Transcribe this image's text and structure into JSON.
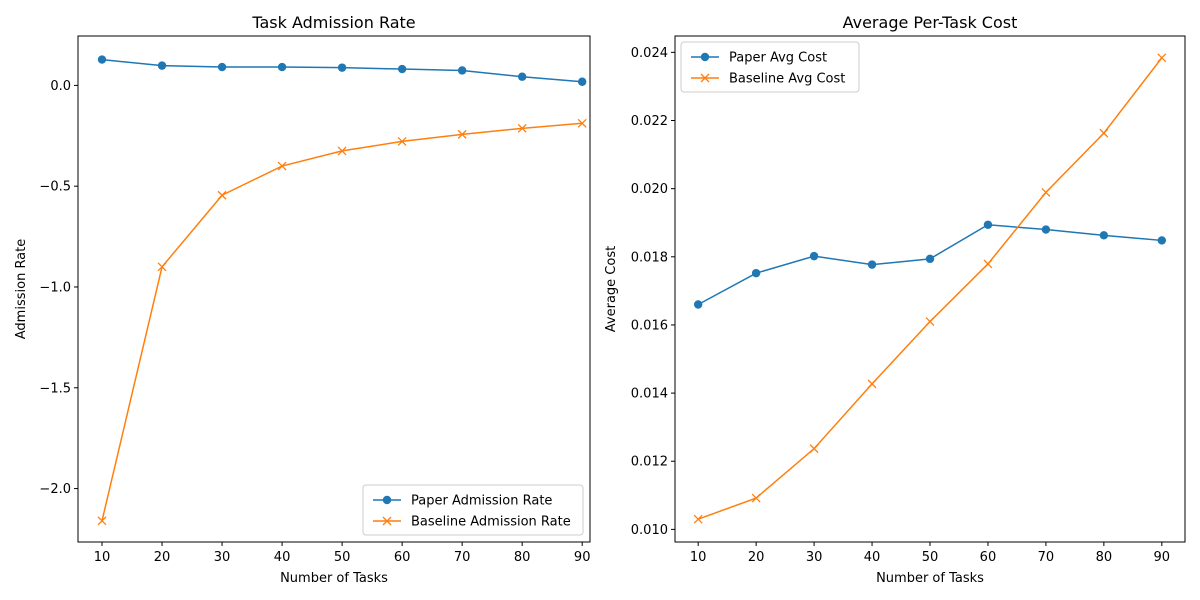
{
  "chart_data": [
    {
      "type": "line",
      "title": "Task Admission Rate",
      "xlabel": "Number of Tasks",
      "ylabel": "Admission Rate",
      "x": [
        10,
        20,
        30,
        40,
        50,
        60,
        70,
        80,
        90
      ],
      "xticks": [
        "10",
        "20",
        "30",
        "40",
        "50",
        "60",
        "70",
        "80",
        "90"
      ],
      "xlim": [
        6,
        91.3
      ],
      "ylim": [
        -2.265,
        0.245
      ],
      "yticks": [
        0.0,
        -0.5,
        -1.0,
        -1.5,
        -2.0
      ],
      "ytick_labels": [
        "0.0",
        "−0.5",
        "−1.0",
        "−1.5",
        "−2.0"
      ],
      "grid": false,
      "legend_position": "lower-right",
      "series": [
        {
          "name": "Paper Admission Rate",
          "marker": "circle",
          "color": "#1f77b4",
          "values": [
            0.128,
            0.098,
            0.091,
            0.091,
            0.088,
            0.081,
            0.074,
            0.043,
            0.018
          ]
        },
        {
          "name": "Baseline Admission Rate",
          "marker": "x",
          "color": "#ff7f0e",
          "values": [
            -2.16,
            -0.9,
            -0.545,
            -0.4,
            -0.325,
            -0.278,
            -0.243,
            -0.213,
            -0.188
          ]
        }
      ]
    },
    {
      "type": "line",
      "title": "Average Per-Task Cost",
      "xlabel": "Number of Tasks",
      "ylabel": "Average Cost",
      "x": [
        10,
        20,
        30,
        40,
        50,
        60,
        70,
        80,
        90
      ],
      "xticks": [
        "10",
        "20",
        "30",
        "40",
        "50",
        "60",
        "70",
        "80",
        "90"
      ],
      "xlim": [
        6,
        94
      ],
      "ylim": [
        0.00963,
        0.02448
      ],
      "yticks": [
        0.01,
        0.012,
        0.014,
        0.016,
        0.018,
        0.02,
        0.022,
        0.024
      ],
      "ytick_labels": [
        "0.010",
        "0.012",
        "0.014",
        "0.016",
        "0.018",
        "0.020",
        "0.022",
        "0.024"
      ],
      "grid": false,
      "legend_position": "upper-left",
      "series": [
        {
          "name": "Paper Avg Cost",
          "marker": "circle",
          "color": "#1f77b4",
          "values": [
            0.0166,
            0.01752,
            0.01802,
            0.01777,
            0.01794,
            0.01894,
            0.0188,
            0.01863,
            0.01848
          ]
        },
        {
          "name": "Baseline Avg Cost",
          "marker": "x",
          "color": "#ff7f0e",
          "values": [
            0.0103,
            0.01092,
            0.01237,
            0.01427,
            0.0161,
            0.01779,
            0.01989,
            0.02163,
            0.02384
          ]
        }
      ]
    }
  ]
}
